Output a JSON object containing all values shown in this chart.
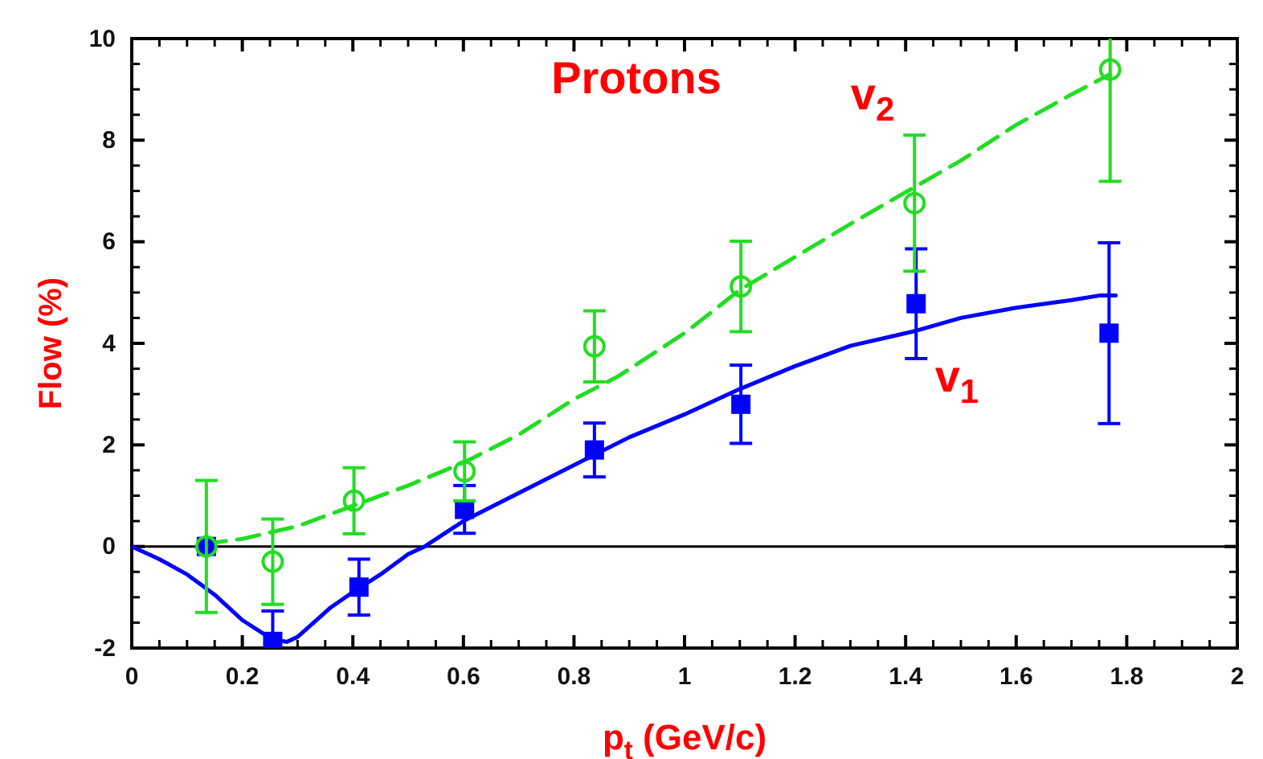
{
  "chart_data": {
    "type": "line",
    "title": "Protons",
    "xlabel": "p$_{t}$ (GeV/c)",
    "ylabel": "Flow (%)",
    "xlim": [
      0,
      2
    ],
    "ylim": [
      -2,
      10
    ],
    "xticks": [
      0,
      0.2,
      0.4,
      0.6,
      0.8,
      1,
      1.2,
      1.4,
      1.6,
      1.8,
      2
    ],
    "yticks": [
      -2,
      0,
      2,
      4,
      6,
      8,
      10
    ],
    "grid": false,
    "ref_lines": [
      {
        "axis": "y",
        "value": 0,
        "color": "#000000",
        "line_style": "solid"
      }
    ],
    "series": [
      {
        "name": "v$_{1}$",
        "color": "#0000ff",
        "line_style": "solid",
        "marker": "none",
        "x": [
          0,
          0.05,
          0.1,
          0.15,
          0.2,
          0.25,
          0.28,
          0.3,
          0.36,
          0.4,
          0.45,
          0.5,
          0.53,
          0.6,
          0.7,
          0.8,
          0.9,
          1.0,
          1.1,
          1.2,
          1.3,
          1.42,
          1.5,
          1.6,
          1.7,
          1.75,
          1.78
        ],
        "values": [
          0,
          -0.25,
          -0.55,
          -0.95,
          -1.45,
          -1.8,
          -1.88,
          -1.78,
          -1.2,
          -0.9,
          -0.55,
          -0.15,
          0,
          0.5,
          1.05,
          1.6,
          2.15,
          2.6,
          3.1,
          3.55,
          3.95,
          4.25,
          4.5,
          4.7,
          4.85,
          4.94,
          4.94
        ]
      },
      {
        "type": "line",
        "name": "v$_{2}$",
        "color": "#22dd22",
        "line_style": "dashed",
        "marker": "none",
        "x": [
          0.13,
          0.2,
          0.3,
          0.4,
          0.5,
          0.6,
          0.7,
          0.8,
          0.88,
          1.0,
          1.1,
          1.2,
          1.3,
          1.42,
          1.5,
          1.6,
          1.7,
          1.77
        ],
        "values": [
          0.05,
          0.15,
          0.4,
          0.8,
          1.2,
          1.65,
          2.2,
          2.9,
          3.35,
          4.2,
          5.05,
          5.7,
          6.35,
          7.1,
          7.6,
          8.3,
          8.9,
          9.3
        ]
      },
      {
        "type": "scatter",
        "color": "#0000ff",
        "marker": "square",
        "x": [
          0.135,
          0.255,
          0.411,
          0.602,
          0.837,
          1.102,
          1.419,
          1.768
        ],
        "values": [
          0,
          -1.87,
          -0.8,
          0.73,
          1.9,
          2.8,
          4.78,
          4.2
        ],
        "errors": [
          null,
          0.6,
          0.55,
          0.47,
          0.53,
          0.77,
          1.08,
          1.78
        ]
      },
      {
        "type": "scatter",
        "color": "#22dd22",
        "marker": "circle",
        "x": [
          0.135,
          0.255,
          0.402,
          0.602,
          0.837,
          1.102,
          1.416,
          1.77
        ],
        "values": [
          0,
          -0.3,
          0.9,
          1.48,
          3.94,
          5.12,
          6.76,
          9.39
        ],
        "errors": [
          1.3,
          0.84,
          0.65,
          0.58,
          0.7,
          0.89,
          1.34,
          2.2
        ]
      }
    ]
  }
}
